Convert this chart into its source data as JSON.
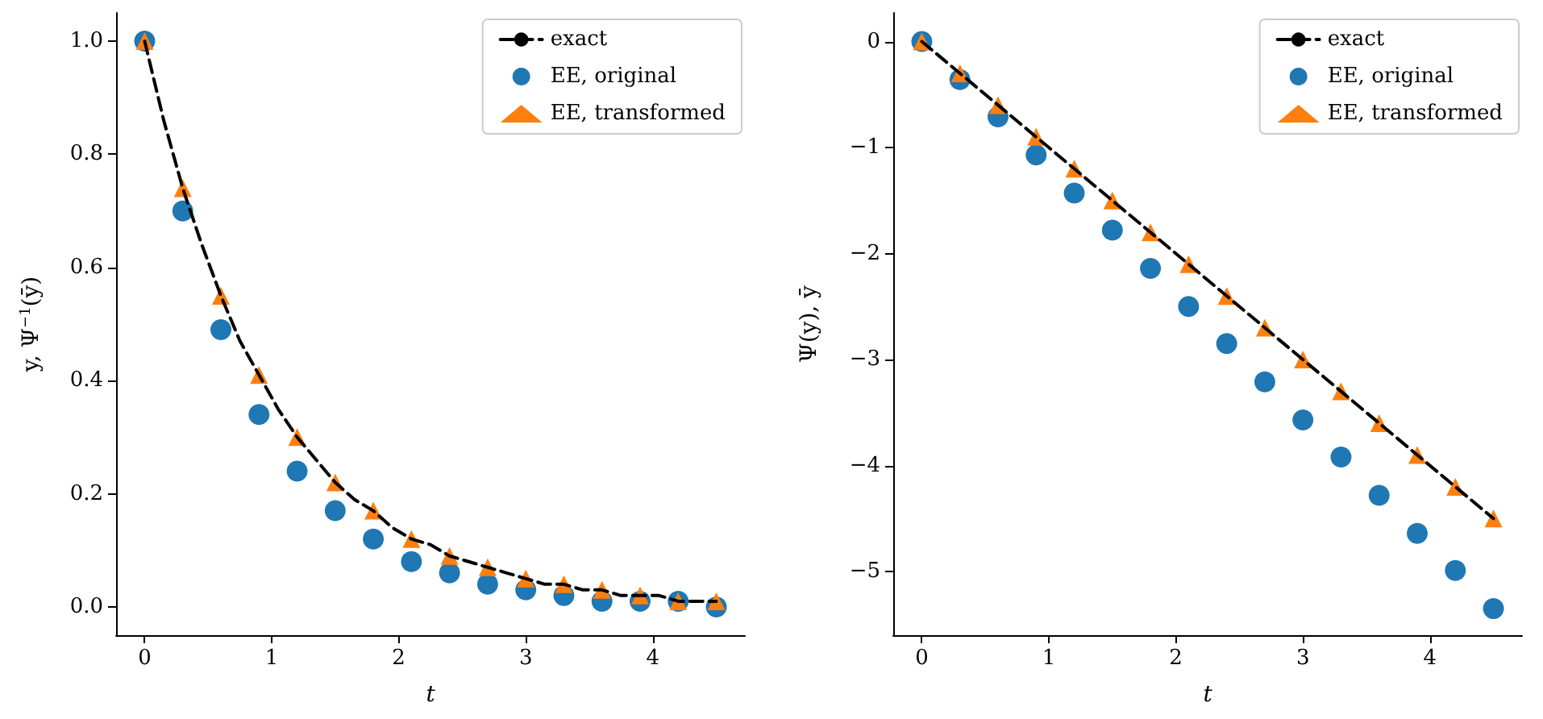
{
  "chart_data": [
    {
      "type": "line",
      "xlabel": "t",
      "ylabel": "y, Ψ$^{−1}$(ȳ)",
      "xlim": [
        -0.225,
        4.725
      ],
      "ylim": [
        -0.05,
        1.05
      ],
      "xticks": [
        0,
        1,
        2,
        3,
        4
      ],
      "yticks": [
        {
          "value": 0,
          "label": "0.0"
        },
        {
          "value": 0.2,
          "label": "0.2"
        },
        {
          "value": 0.4,
          "label": "0.4"
        },
        {
          "value": 0.6,
          "label": "0.6"
        },
        {
          "value": 0.8,
          "label": "0.8"
        },
        {
          "value": 1,
          "label": "1.0"
        }
      ],
      "legend": "top right",
      "grid": false,
      "series": [
        {
          "name": "exact",
          "type": "line",
          "color": "#000000",
          "line_style": "dashed",
          "marker": "none",
          "x": [
            0,
            0.15,
            0.3,
            0.45,
            0.6,
            0.75,
            0.9,
            1.05,
            1.2,
            1.35,
            1.5,
            1.65,
            1.8,
            1.95,
            2.1,
            2.25,
            2.4,
            2.55,
            2.7,
            2.85,
            3.0,
            3.15,
            3.3,
            3.45,
            3.6,
            3.75,
            3.9,
            4.05,
            4.2,
            4.35,
            4.5
          ],
          "values": [
            1,
            0.86,
            0.74,
            0.64,
            0.55,
            0.47,
            0.41,
            0.35,
            0.3,
            0.26,
            0.22,
            0.19,
            0.17,
            0.14,
            0.12,
            0.11,
            0.09,
            0.08,
            0.07,
            0.06,
            0.05,
            0.04,
            0.04,
            0.03,
            0.03,
            0.02,
            0.02,
            0.02,
            0.01,
            0.01,
            0.01
          ]
        },
        {
          "name": "EE, original",
          "type": "scatter",
          "color": "#1f77b4",
          "marker": "circle",
          "x": [
            0,
            0.3,
            0.6,
            0.9,
            1.2,
            1.5,
            1.8,
            2.1,
            2.4,
            2.7,
            3.0,
            3.3,
            3.6,
            3.9,
            4.2,
            4.5
          ],
          "values": [
            1,
            0.7,
            0.49,
            0.34,
            0.24,
            0.17,
            0.12,
            0.08,
            0.06,
            0.04,
            0.03,
            0.02,
            0.01,
            0.01,
            0.01,
            0.0
          ]
        },
        {
          "name": "EE, transformed",
          "type": "scatter",
          "color": "#ff7f0e",
          "marker": "triangle",
          "x": [
            0,
            0.3,
            0.6,
            0.9,
            1.2,
            1.5,
            1.8,
            2.1,
            2.4,
            2.7,
            3.0,
            3.3,
            3.6,
            3.9,
            4.2,
            4.5
          ],
          "values": [
            1,
            0.74,
            0.55,
            0.41,
            0.3,
            0.22,
            0.17,
            0.12,
            0.09,
            0.07,
            0.05,
            0.04,
            0.03,
            0.02,
            0.01,
            0.01
          ]
        }
      ]
    },
    {
      "type": "line",
      "xlabel": "t",
      "ylabel": "Ψ(y), ȳ",
      "xlim": [
        -0.225,
        4.725
      ],
      "ylim": [
        -5.6,
        0.27
      ],
      "xticks": [
        0,
        1,
        2,
        3,
        4
      ],
      "yticks": [
        {
          "value": -5,
          "label": "−5"
        },
        {
          "value": -4,
          "label": "−4"
        },
        {
          "value": -3,
          "label": "−3"
        },
        {
          "value": -2,
          "label": "−2"
        },
        {
          "value": -1,
          "label": "−1"
        },
        0
      ],
      "legend": "top right",
      "grid": false,
      "series": [
        {
          "name": "exact",
          "type": "line",
          "color": "#000000",
          "line_style": "dashed",
          "marker": "none",
          "x": [
            0,
            4.5
          ],
          "values": [
            0,
            -4.5
          ]
        },
        {
          "name": "EE, original",
          "type": "scatter",
          "color": "#1f77b4",
          "marker": "circle",
          "x": [
            0,
            0.3,
            0.6,
            0.9,
            1.2,
            1.5,
            1.8,
            2.1,
            2.4,
            2.7,
            3.0,
            3.3,
            3.6,
            3.9,
            4.2,
            4.5
          ],
          "values": [
            0,
            -0.36,
            -0.71,
            -1.07,
            -1.43,
            -1.78,
            -2.14,
            -2.5,
            -2.85,
            -3.21,
            -3.57,
            -3.92,
            -4.28,
            -4.64,
            -4.99,
            -5.35
          ]
        },
        {
          "name": "EE, transformed",
          "type": "scatter",
          "color": "#ff7f0e",
          "marker": "triangle",
          "x": [
            0,
            0.3,
            0.6,
            0.9,
            1.2,
            1.5,
            1.8,
            2.1,
            2.4,
            2.7,
            3.0,
            3.3,
            3.6,
            3.9,
            4.2,
            4.5
          ],
          "values": [
            0,
            -0.3,
            -0.6,
            -0.9,
            -1.2,
            -1.5,
            -1.8,
            -2.1,
            -2.4,
            -2.7,
            -3.0,
            -3.3,
            -3.6,
            -3.9,
            -4.2,
            -4.5
          ]
        }
      ]
    }
  ]
}
